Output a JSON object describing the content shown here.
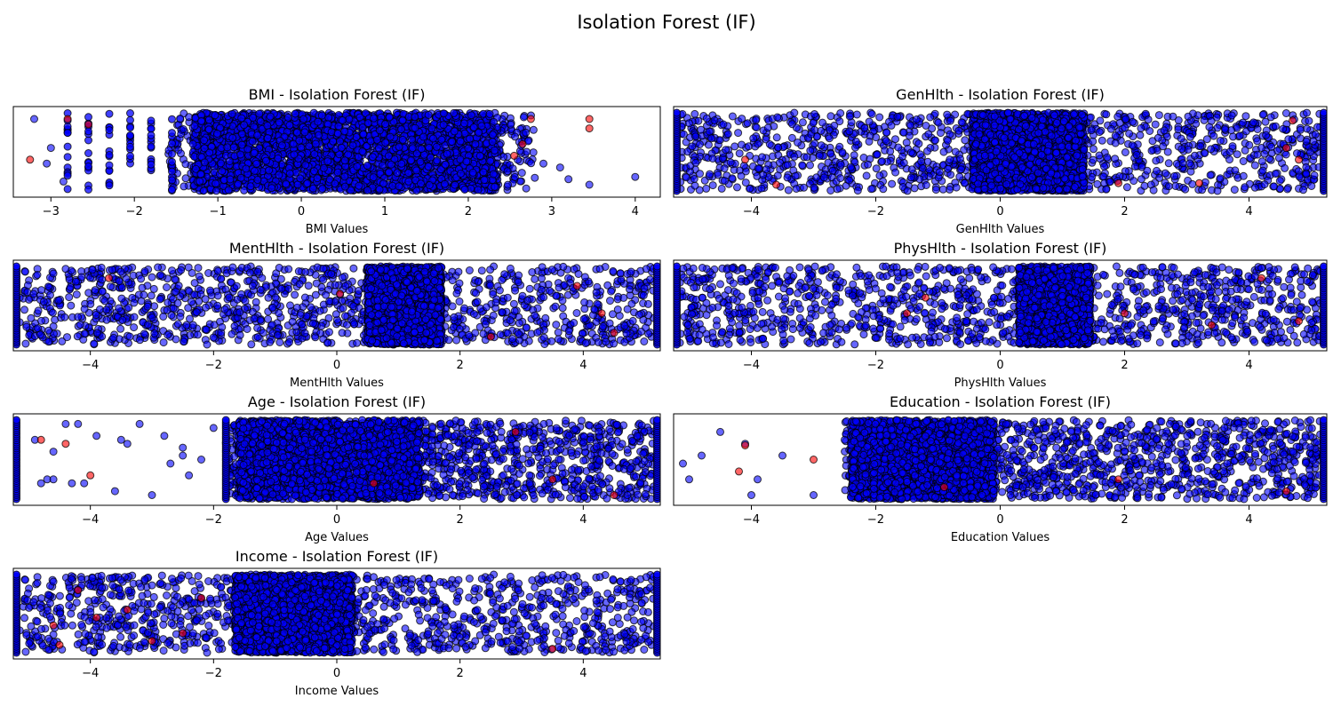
{
  "figure": {
    "suptitle": "Isolation Forest (IF)"
  },
  "legend": {
    "normal_color": "#0000ff",
    "anomaly_color": "#ff0000",
    "edge_color": "#000000"
  },
  "chart_data": [
    {
      "type": "scatter",
      "title": "BMI - Isolation Forest (IF)",
      "xlabel": "BMI Values",
      "ylabel": "",
      "xlim": [
        -3.45,
        4.3
      ],
      "xticks": [
        -3,
        -2,
        -1,
        0,
        1,
        2,
        3,
        4
      ],
      "jitter_range": [
        0,
        1
      ],
      "dense_range": [
        -1.3,
        2.35
      ],
      "discrete_columns": [
        -2.8,
        -2.55,
        -2.3,
        -2.05,
        -1.8,
        -1.55
      ],
      "sparse_points": [
        [
          -3.2,
          0.92
        ],
        [
          -3.0,
          0.55
        ],
        [
          -3.05,
          0.35
        ],
        [
          -2.85,
          0.12
        ],
        [
          3.1,
          0.3
        ],
        [
          3.2,
          0.15
        ],
        [
          3.45,
          0.08
        ],
        [
          4.0,
          0.18
        ],
        [
          2.7,
          0.5
        ],
        [
          2.9,
          0.35
        ]
      ],
      "anomaly_points": [
        [
          -2.8,
          0.92
        ],
        [
          -3.25,
          0.4
        ],
        [
          -2.55,
          0.85
        ],
        [
          3.45,
          0.92
        ],
        [
          3.45,
          0.8
        ],
        [
          2.75,
          0.92
        ],
        [
          2.65,
          0.6
        ],
        [
          2.55,
          0.45
        ]
      ],
      "grid": false
    },
    {
      "type": "scatter",
      "title": "GenHlth - Isolation Forest (IF)",
      "xlabel": "GenHlth Values",
      "ylabel": "",
      "xlim": [
        -5.25,
        5.25
      ],
      "xticks": [
        -4,
        -2,
        0,
        2,
        4
      ],
      "jitter_range": [
        0,
        1
      ],
      "dense_range": [
        -0.45,
        1.35
      ],
      "edge_columns": [
        -5.2,
        5.2
      ],
      "anomaly_points": [
        [
          -4.1,
          0.4
        ],
        [
          -3.6,
          0.08
        ],
        [
          4.7,
          0.9
        ],
        [
          4.6,
          0.55
        ],
        [
          3.2,
          0.1
        ],
        [
          1.9,
          0.1
        ],
        [
          4.8,
          0.4
        ]
      ],
      "grid": false
    },
    {
      "type": "scatter",
      "title": "MentHlth - Isolation Forest (IF)",
      "xlabel": "MentHlth Values",
      "ylabel": "",
      "xlim": [
        -5.25,
        5.25
      ],
      "xticks": [
        -4,
        -2,
        0,
        2,
        4
      ],
      "jitter_range": [
        0,
        1
      ],
      "dense_range": [
        0.5,
        1.7
      ],
      "edge_columns": [
        -5.2,
        5.2
      ],
      "anomaly_points": [
        [
          0.05,
          0.65
        ],
        [
          -3.7,
          0.85
        ],
        [
          3.9,
          0.75
        ],
        [
          4.5,
          0.15
        ],
        [
          2.5,
          0.1
        ],
        [
          4.3,
          0.4
        ]
      ],
      "grid": false
    },
    {
      "type": "scatter",
      "title": "PhysHlth - Isolation Forest (IF)",
      "xlabel": "PhysHlth Values",
      "ylabel": "",
      "xlim": [
        -5.25,
        5.25
      ],
      "xticks": [
        -4,
        -2,
        0,
        2,
        4
      ],
      "jitter_range": [
        0,
        1
      ],
      "dense_range": [
        0.3,
        1.45
      ],
      "edge_columns": [
        -5.2,
        5.2
      ],
      "anomaly_points": [
        [
          -1.2,
          0.6
        ],
        [
          -1.5,
          0.4
        ],
        [
          4.2,
          0.85
        ],
        [
          4.8,
          0.3
        ],
        [
          2.0,
          0.4
        ],
        [
          3.4,
          0.25
        ]
      ],
      "grid": false
    },
    {
      "type": "scatter",
      "title": "Age - Isolation Forest (IF)",
      "xlabel": "Age Values",
      "ylabel": "",
      "xlim": [
        -5.25,
        5.25
      ],
      "xticks": [
        -4,
        -2,
        0,
        2,
        4
      ],
      "jitter_range": [
        0,
        1
      ],
      "dense_range": [
        -1.6,
        1.35
      ],
      "edge_columns": [
        -5.2,
        -1.8,
        5.2
      ],
      "sparse_points": [
        [
          -4.9,
          0.75
        ],
        [
          -4.7,
          0.25
        ],
        [
          -4.4,
          0.95
        ],
        [
          -4.2,
          0.95
        ],
        [
          -4.1,
          0.2
        ],
        [
          -3.9,
          0.8
        ],
        [
          -3.5,
          0.75
        ],
        [
          -3.4,
          0.7
        ],
        [
          -3.2,
          0.95
        ],
        [
          -3.0,
          0.05
        ],
        [
          -2.8,
          0.8
        ],
        [
          -2.7,
          0.45
        ],
        [
          -2.5,
          0.55
        ],
        [
          -2.5,
          0.65
        ],
        [
          -2.4,
          0.3
        ],
        [
          -2.2,
          0.5
        ],
        [
          -2.0,
          0.9
        ],
        [
          -4.6,
          0.6
        ],
        [
          -4.3,
          0.2
        ],
        [
          -3.6,
          0.1
        ],
        [
          -4.6,
          0.25
        ],
        [
          -4.8,
          0.2
        ]
      ],
      "anomaly_points": [
        [
          -4.4,
          0.7
        ],
        [
          -4.0,
          0.3
        ],
        [
          -4.8,
          0.75
        ],
        [
          2.9,
          0.85
        ],
        [
          4.5,
          0.05
        ],
        [
          0.6,
          0.2
        ],
        [
          3.5,
          0.25
        ]
      ],
      "grid": false
    },
    {
      "type": "scatter",
      "title": "Education - Isolation Forest (IF)",
      "xlabel": "Education Values",
      "ylabel": "",
      "xlim": [
        -5.25,
        5.25
      ],
      "xticks": [
        -4,
        -2,
        0,
        2,
        4
      ],
      "jitter_range": [
        0,
        1
      ],
      "dense_range": [
        -2.4,
        -0.1
      ],
      "edge_columns": [
        5.2
      ],
      "sparse_points": [
        [
          -5.1,
          0.45
        ],
        [
          -5.0,
          0.25
        ],
        [
          -4.8,
          0.55
        ],
        [
          -4.5,
          0.85
        ],
        [
          -4.1,
          0.7
        ],
        [
          -3.9,
          0.25
        ],
        [
          -4.0,
          0.05
        ],
        [
          -3.5,
          0.55
        ],
        [
          -3.0,
          0.05
        ],
        [
          -2.5,
          0.75
        ]
      ],
      "anomaly_points": [
        [
          -4.1,
          0.68
        ],
        [
          -4.2,
          0.35
        ],
        [
          -3.0,
          0.5
        ],
        [
          -0.9,
          0.15
        ],
        [
          4.6,
          0.1
        ],
        [
          1.9,
          0.25
        ]
      ],
      "grid": false
    },
    {
      "type": "scatter",
      "title": "Income - Isolation Forest (IF)",
      "xlabel": "Income Values",
      "ylabel": "",
      "xlim": [
        -5.25,
        5.25
      ],
      "xticks": [
        -4,
        -2,
        0,
        2,
        4
      ],
      "jitter_range": [
        0,
        1
      ],
      "dense_range": [
        -1.65,
        0.25
      ],
      "edge_columns": [
        -5.2,
        5.2
      ],
      "anomaly_points": [
        [
          -3.4,
          0.55
        ],
        [
          -4.2,
          0.8
        ],
        [
          -3.9,
          0.45
        ],
        [
          -4.6,
          0.35
        ],
        [
          -3.0,
          0.15
        ],
        [
          -4.5,
          0.1
        ],
        [
          -2.5,
          0.25
        ],
        [
          3.5,
          0.05
        ],
        [
          -2.2,
          0.7
        ]
      ],
      "grid": false
    }
  ]
}
